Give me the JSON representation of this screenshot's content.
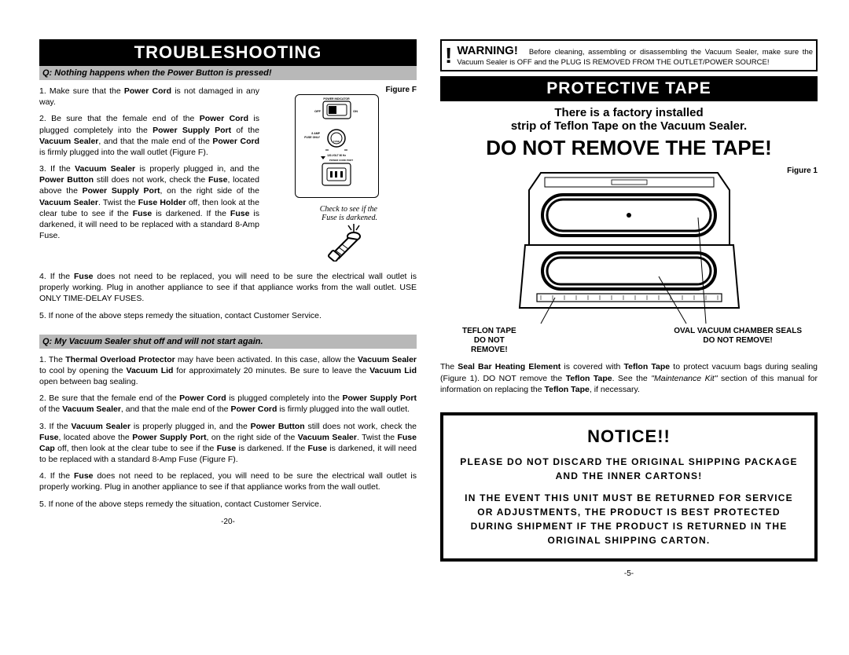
{
  "left": {
    "header": "TROUBLESHOOTING",
    "q1": "Q:  Nothing happens when the Power Button is pressed!",
    "p1": "1.  Make sure that the <b>Power Cord</b> is not damaged in any way.",
    "p2": "2.  Be sure that the female end of the <b>Power Cord</b> is plugged completely into the <b>Power Supply Port</b> of the <b>Vacuum Sealer</b>, and that the male end of the <b>Power Cord</b> is firmly plugged into the wall outlet (Figure F).",
    "p3": "3. If the <b>Vacuum Sealer</b> is properly plugged in, and the <b>Power Button</b> still does not work, check the <b>Fuse</b>, located above the <b>Power Supply Port</b>, on the right side of the <b>Vacuum Sealer</b>.  Twist the <b>Fuse Holder</b> off, then look at the clear tube to see if the <b>Fuse</b> is darkened. If the <b>Fuse</b> is darkened, it will need to be replaced with a standard 8-Amp Fuse.",
    "p4": "4.  If the <b>Fuse</b> does not need to be replaced, you will need to be sure the electrical wall outlet is properly working.  Plug in another appliance to see if that appliance works from the wall outlet.  USE ONLY TIME-DELAY FUSES.",
    "p5": "5. If none of the above steps remedy the situation, contact Customer Service.",
    "q2": "Q:  My Vacuum Sealer shut off and will not start again.",
    "p6": "1.  The <b>Thermal Overload Protector</b> may have been activated.  In this case, allow the <b>Vacuum Sealer</b> to cool by opening the <b>Vacuum Lid</b> for approximately 20 minutes.  Be sure to leave the <b>Vacuum Lid</b> open between bag sealing.",
    "p7": "2.  Be sure that the female end of the <b>Power Cord</b> is plugged completely into the <b>Power Supply Port</b> of the <b>Vacuum Sealer</b>, and that the male end of the <b>Power Cord</b> is firmly plugged into the wall outlet.",
    "p8": "3.  If the <b>Vacuum Sealer</b> is properly plugged in, and the <b>Power Button</b> still does not work, check the <b>Fuse</b>, located above the <b>Power Supply Port</b>, on the right side of the <b>Vacuum Sealer</b>.  Twist the <b>Fuse Cap</b> off, then look at the clear tube to see if the <b>Fuse</b> is darkened. If the <b>Fuse</b> is darkened, it will need to be replaced with a standard 8-Amp Fuse (Figure F).",
    "p9": "4.  If the <b>Fuse</b> does not need to be replaced, you will need to be sure the electrical wall outlet is properly working.  Plug in another appliance to see if that appliance works from the wall outlet.",
    "p10": "5. If none of the above steps remedy the situation, contact Customer Service.",
    "figF": "Figure F",
    "figF_annot": "Check to see if the\nFuse is darkened.",
    "figF_power": "POWER INDICATOR",
    "figF_off": "OFF",
    "figF_on": "ON",
    "figF_amp": "8 AMP\nFUSE ONLY",
    "figF_fuse": "FUSE",
    "figF_volt": "120-VOLT 60 Hz",
    "figF_port": "POWER CORD PORT",
    "pagenum": "-20-"
  },
  "right": {
    "warning_label": "WARNING!",
    "warning_text": "Before cleaning, assembling or disassembling the Vacuum Sealer, make sure the Vacuum Sealer is OFF and the PLUG IS REMOVED FROM THE OUTLET/POWER SOURCE!",
    "header": "PROTECTIVE TAPE",
    "intro1": "There is a factory installed",
    "intro2": "strip of Teflon Tape on the Vacuum Sealer.",
    "headline": "DO NOT REMOVE THE TAPE!",
    "fig1": "Figure 1",
    "callout_left": "TEFLON TAPE\nDO NOT\nREMOVE!",
    "callout_right": "OVAL VACUUM CHAMBER SEALS\nDO NOT REMOVE!",
    "desc": "The <b>Seal Bar Heating Element</b> is covered with <b>Teflon Tape</b> to protect vacuum bags during sealing (Figure 1).  DO NOT remove the <b>Teflon Tape</b>.  See the <i>\"Maintenance Kit\"</i> section of this manual for information on replacing the <b>Teflon Tape</b>, if necessary.",
    "notice_title": "NOTICE!!",
    "notice1": "PLEASE DO NOT DISCARD THE ORIGINAL SHIPPING PACKAGE AND THE INNER CARTONS!",
    "notice2": "IN THE EVENT THIS UNIT MUST BE RETURNED FOR SERVICE OR ADJUSTMENTS, THE PRODUCT IS BEST PROTECTED DURING SHIPMENT IF THE PRODUCT IS RETURNED IN THE ORIGINAL SHIPPING CARTON.",
    "pagenum": "-5-"
  }
}
